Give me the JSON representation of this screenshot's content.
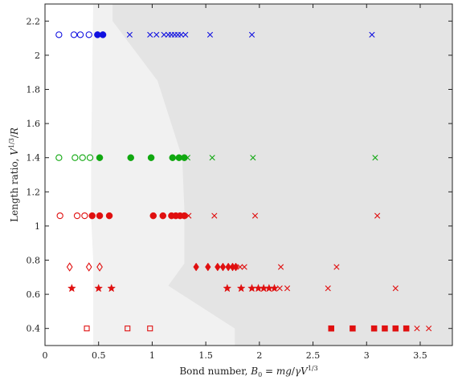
{
  "chart_data": {
    "type": "scatter",
    "title": "",
    "xlabel": "Bond number, B₀ = mg/γV¹ᐟ³",
    "ylabel": "Length ratio, V¹ᐟ³/R",
    "xlim": [
      0,
      3.8
    ],
    "ylim": [
      0.3,
      2.3
    ],
    "xticks": [
      0,
      0.5,
      1,
      1.5,
      2,
      2.5,
      3,
      3.5
    ],
    "xtick_labels": [
      "0",
      "0.5",
      "1",
      "1.5",
      "2",
      "2.5",
      "3",
      "3.5"
    ],
    "yticks": [
      0.4,
      0.6,
      0.8,
      1,
      1.2,
      1.4,
      1.6,
      1.8,
      2,
      2.2
    ],
    "ytick_labels": [
      "0.4",
      "0.6",
      "0.8",
      "1",
      "1.2",
      "1.4",
      "1.6",
      "1.8",
      "2",
      "2.2"
    ],
    "grid": false,
    "colors": {
      "blue": "#1010e0",
      "green": "#10a810",
      "red": "#e01010",
      "light_region": "#f1f1f1",
      "dark_region": "#e4e4e4"
    },
    "regions": [
      {
        "shade": "light",
        "polygon": [
          [
            0.45,
            0.3
          ],
          [
            0.45,
            0.8
          ],
          [
            0.43,
            1.05
          ],
          [
            0.43,
            1.4
          ],
          [
            0.45,
            2.3
          ],
          [
            3.8,
            2.3
          ],
          [
            3.8,
            0.3
          ]
        ]
      },
      {
        "shade": "dark",
        "polygon": [
          [
            0.63,
            2.3
          ],
          [
            0.63,
            2.2
          ],
          [
            0.75,
            2.1
          ],
          [
            1.05,
            1.85
          ],
          [
            1.28,
            1.4
          ],
          [
            1.3,
            1.1
          ],
          [
            1.3,
            0.78
          ],
          [
            1.15,
            0.65
          ],
          [
            1.77,
            0.4
          ],
          [
            1.77,
            0.3
          ],
          [
            3.8,
            0.3
          ],
          [
            3.8,
            2.3
          ]
        ]
      }
    ],
    "series": [
      {
        "color": "blue",
        "marker": "open-circle",
        "y": 2.12,
        "x": [
          0.13,
          0.27,
          0.33,
          0.41
        ]
      },
      {
        "color": "blue",
        "marker": "filled-circle",
        "y": 2.12,
        "x": [
          0.49,
          0.54
        ]
      },
      {
        "color": "blue",
        "marker": "cross",
        "y": 2.12,
        "x": [
          0.79,
          0.98,
          1.04,
          1.11,
          1.15,
          1.18,
          1.21,
          1.24,
          1.27,
          1.31,
          1.54,
          1.93,
          3.05
        ]
      },
      {
        "color": "green",
        "marker": "open-circle",
        "y": 1.4,
        "x": [
          0.13,
          0.28,
          0.35,
          0.42
        ]
      },
      {
        "color": "green",
        "marker": "filled-circle",
        "y": 1.4,
        "x": [
          0.51,
          0.8,
          0.99,
          1.19,
          1.25,
          1.3
        ]
      },
      {
        "color": "green",
        "marker": "cross",
        "y": 1.4,
        "x": [
          1.33,
          1.56,
          1.94,
          3.08
        ]
      },
      {
        "color": "red",
        "marker": "open-circle",
        "y": 1.06,
        "x": [
          0.14,
          0.3,
          0.37
        ]
      },
      {
        "color": "red",
        "marker": "filled-circle",
        "y": 1.06,
        "x": [
          0.44,
          0.51,
          0.6,
          1.01,
          1.1,
          1.18,
          1.22,
          1.26,
          1.3
        ]
      },
      {
        "color": "red",
        "marker": "cross",
        "y": 1.06,
        "x": [
          1.34,
          1.58,
          1.96,
          3.1
        ]
      },
      {
        "color": "red",
        "marker": "open-diamond",
        "y": 0.76,
        "x": [
          0.23,
          0.41,
          0.51
        ]
      },
      {
        "color": "red",
        "marker": "filled-diamond",
        "y": 0.76,
        "x": [
          1.41,
          1.52,
          1.61,
          1.66,
          1.71,
          1.75,
          1.78
        ]
      },
      {
        "color": "red",
        "marker": "cross",
        "y": 0.76,
        "x": [
          1.82,
          1.86,
          2.2,
          2.72
        ]
      },
      {
        "color": "red",
        "marker": "star",
        "y": 0.635,
        "x": [
          0.25,
          0.5,
          0.62,
          1.7,
          1.83,
          1.93,
          1.99,
          2.04,
          2.09,
          2.14
        ]
      },
      {
        "color": "red",
        "marker": "cross",
        "y": 0.635,
        "x": [
          2.19,
          2.26,
          2.64,
          3.27
        ]
      },
      {
        "color": "red",
        "marker": "open-square",
        "y": 0.4,
        "x": [
          0.39,
          0.77,
          0.98
        ]
      },
      {
        "color": "red",
        "marker": "filled-square",
        "y": 0.4,
        "x": [
          2.67,
          2.87,
          3.07,
          3.17,
          3.27,
          3.37
        ]
      },
      {
        "color": "red",
        "marker": "cross",
        "y": 0.4,
        "x": [
          3.47,
          3.58
        ]
      }
    ]
  }
}
